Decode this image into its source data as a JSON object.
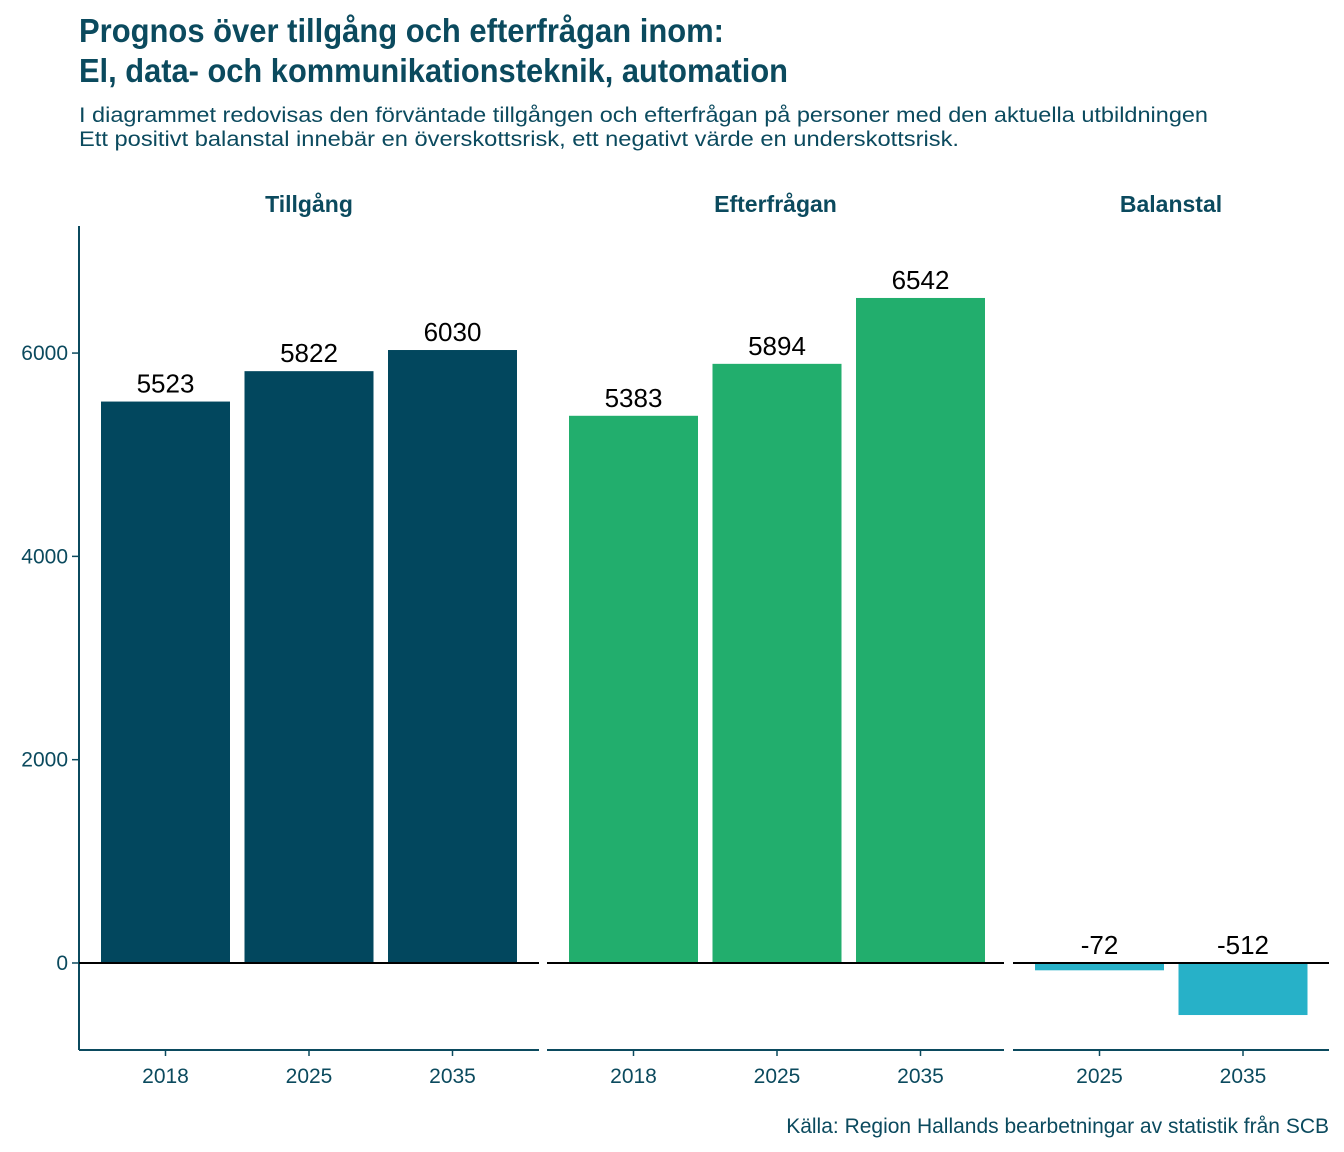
{
  "chart_data": {
    "type": "bar",
    "title": [
      "Prognos över tillgång och efterfrågan inom:",
      "El, data- och kommunikationsteknik, automation"
    ],
    "subtitle": [
      "I diagrammet redovisas den förväntade tillgången och efterfrågan på personer med den aktuella utbildningen",
      "Ett positivt balanstal innebär en överskottsrisk, ett negativt värde en underskottsrisk."
    ],
    "caption": "Källa: Region Hallands bearbetningar av statistik från SCB",
    "xlabel": "",
    "ylabel": "",
    "ylim": [
      -856,
      7250
    ],
    "yticks": [
      0,
      2000,
      4000,
      6000
    ],
    "grid": false,
    "panels": [
      {
        "name": "Tillgång",
        "color": "#02475e",
        "categories": [
          "2018",
          "2025",
          "2035"
        ],
        "values": [
          5523,
          5822,
          6030
        ]
      },
      {
        "name": "Efterfrågan",
        "color": "#22ae6d",
        "categories": [
          "2018",
          "2025",
          "2035"
        ],
        "values": [
          5383,
          5894,
          6542
        ]
      },
      {
        "name": "Balanstal",
        "color": "#27b1c8",
        "categories": [
          "2025",
          "2035"
        ],
        "values": [
          -72,
          -512
        ]
      }
    ]
  }
}
